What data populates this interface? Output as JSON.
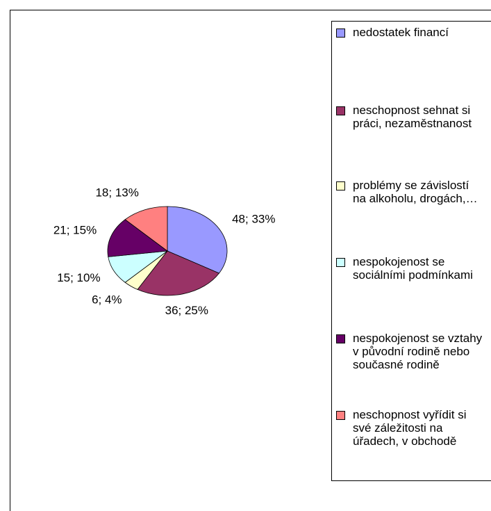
{
  "chart_data": {
    "type": "pie",
    "categories": [
      "nedostatek financí",
      "neschopnost sehnat si práci, nezaměstnanost",
      "problémy se závislostí na alkoholu, drogách,…",
      "nespokojenost se sociálními podmínkami",
      "nespokojenost se vztahy v původní rodině nebo současné rodině",
      "neschopnost vyřídit si své záležitosti na úřadech, v obchodě"
    ],
    "values": [
      48,
      36,
      6,
      15,
      21,
      18
    ],
    "value_labels": [
      "48; 33%",
      "36; 25%",
      "6; 4%",
      "15; 10%",
      "21; 15%",
      "18; 13%"
    ],
    "colors": [
      "#9999ff",
      "#993366",
      "#ffffcc",
      "#ccffff",
      "#660066",
      "#ff8080"
    ],
    "legend": "right"
  }
}
